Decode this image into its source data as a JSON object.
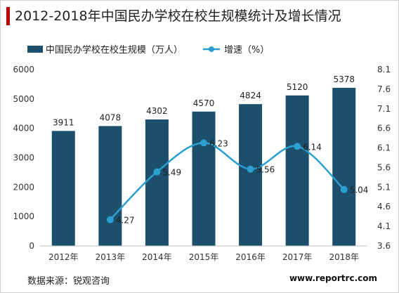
{
  "title": "2012-2018年中国民办学校在校生规模统计及增长情况",
  "source": "数据来源：锐观咨询",
  "website": "www.reportrc.com",
  "chart_data": {
    "type": "bar",
    "categories": [
      "2012年",
      "2013年",
      "2014年",
      "2015年",
      "2016年",
      "2017年",
      "2018年"
    ],
    "series": [
      {
        "name": "中国民办学校在校生规模（万人）",
        "type": "bar",
        "axis": "left",
        "values": [
          3911,
          4078,
          4302,
          4570,
          4824,
          5120,
          5378
        ],
        "labels": [
          "3911",
          "4078",
          "4302",
          "4570",
          "4824",
          "5120",
          "5378"
        ],
        "color": "#1b4f6c"
      },
      {
        "name": "增速（%）",
        "type": "line",
        "axis": "right",
        "values": [
          null,
          4.27,
          5.49,
          6.23,
          5.56,
          6.14,
          5.04
        ],
        "labels": [
          "",
          "4.27",
          "5.49",
          "6.23",
          "5.56",
          "6.14",
          "5.04"
        ],
        "color": "#2a9fd0"
      }
    ],
    "y_left": {
      "min": 0,
      "max": 6000,
      "ticks": [
        0,
        1000,
        2000,
        3000,
        4000,
        5000,
        6000
      ],
      "tick_labels": [
        "0",
        "1000",
        "2000",
        "3000",
        "4000",
        "5000",
        "6000"
      ]
    },
    "y_right": {
      "min": 3.6,
      "max": 8.1,
      "ticks": [
        3.6,
        4.1,
        4.6,
        5.1,
        5.6,
        6.1,
        6.6,
        7.1,
        7.6,
        8.1
      ],
      "tick_labels": [
        "3.6",
        "4.1",
        "4.6",
        "5.1",
        "5.6",
        "6.1",
        "6.6",
        "7.1",
        "7.6",
        "8.1"
      ]
    },
    "legend_position": "top-left",
    "grid": false
  }
}
